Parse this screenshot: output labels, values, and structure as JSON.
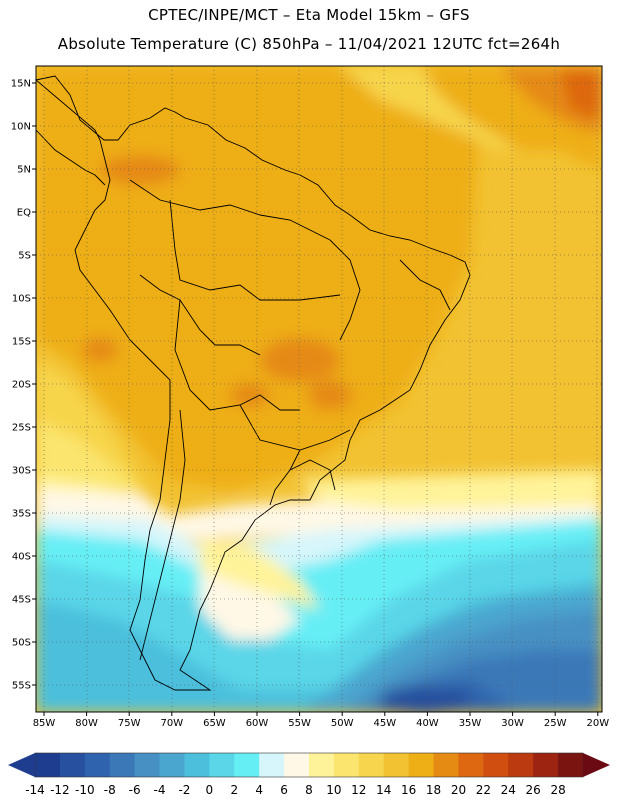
{
  "header": {
    "line1": "CPTEC/INPE/MCT –  Eta Model 15km – GFS",
    "line2": "Absolute Temperature (C) 850hPa – 11/04/2021 12UTC fct=264h"
  },
  "map": {
    "lat_labels": [
      "15N",
      "10N",
      "5N",
      "EQ",
      "5S",
      "10S",
      "15S",
      "20S",
      "25S",
      "30S",
      "35S",
      "40S",
      "45S",
      "50S",
      "55S"
    ],
    "lon_labels": [
      "85W",
      "80W",
      "75W",
      "70W",
      "65W",
      "60W",
      "55W",
      "50W",
      "45W",
      "40W",
      "35W",
      "30W",
      "25W",
      "20W"
    ],
    "lat_range": [
      18,
      -58
    ],
    "lon_range": [
      -86,
      -19
    ]
  },
  "colorbar": {
    "labels": [
      "-14",
      "-12",
      "-10",
      "-8",
      "-6",
      "-4",
      "-2",
      "0",
      "2",
      "4",
      "6",
      "8",
      "10",
      "12",
      "14",
      "16",
      "18",
      "20",
      "22",
      "24",
      "26",
      "28"
    ],
    "left_arrow_color": "#1e3d8f",
    "right_arrow_color": "#6b0a12",
    "colors": [
      "#1e3d8f",
      "#27509e",
      "#2f63ad",
      "#3a78b8",
      "#4690c3",
      "#4ba6cf",
      "#4cbfdc",
      "#5ad6e8",
      "#66eef5",
      "#d6f6fb",
      "#fff8e6",
      "#fff39a",
      "#fbe56e",
      "#f7d54c",
      "#f2c232",
      "#eeae16",
      "#e58a13",
      "#dd6811",
      "#cf4e10",
      "#bb3a10",
      "#9c2410",
      "#7a1410"
    ]
  }
}
